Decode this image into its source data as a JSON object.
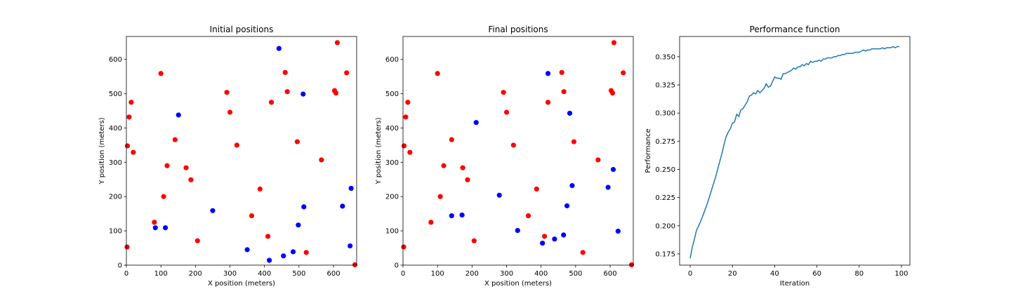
{
  "chart_data": [
    {
      "type": "scatter",
      "title": "Initial positions",
      "xlabel": "X position (meters)",
      "ylabel": "Y position (meters)",
      "xlim": [
        0,
        667
      ],
      "ylim": [
        0,
        667
      ],
      "xticks": [
        0,
        100,
        200,
        300,
        400,
        500,
        600
      ],
      "yticks": [
        0,
        100,
        200,
        300,
        400,
        500,
        600
      ],
      "grid": false,
      "series": [
        {
          "color": "#ff0000",
          "points": [
            [
              2,
              53
            ],
            [
              3,
              348
            ],
            [
              8,
              432
            ],
            [
              14,
              475
            ],
            [
              20,
              329
            ],
            [
              81,
              125
            ],
            [
              100,
              559
            ],
            [
              108,
              200
            ],
            [
              118,
              290
            ],
            [
              141,
              366
            ],
            [
              173,
              284
            ],
            [
              187,
              249
            ],
            [
              206,
              71
            ],
            [
              291,
              504
            ],
            [
              300,
              446
            ],
            [
              320,
              350
            ],
            [
              363,
              144
            ],
            [
              387,
              222
            ],
            [
              410,
              84
            ],
            [
              420,
              475
            ],
            [
              460,
              562
            ],
            [
              466,
              506
            ],
            [
              495,
              360
            ],
            [
              521,
              37
            ],
            [
              565,
              307
            ],
            [
              603,
              509
            ],
            [
              607,
              502
            ],
            [
              611,
              649
            ],
            [
              638,
              561
            ],
            [
              662,
              1
            ]
          ]
        },
        {
          "color": "#0000ff",
          "points": [
            [
              84,
              109
            ],
            [
              113,
              109
            ],
            [
              151,
              438
            ],
            [
              250,
              159
            ],
            [
              350,
              45
            ],
            [
              414,
              14
            ],
            [
              442,
              632
            ],
            [
              455,
              27
            ],
            [
              483,
              39
            ],
            [
              498,
              117
            ],
            [
              512,
              499
            ],
            [
              514,
              170
            ],
            [
              626,
              172
            ],
            [
              648,
              56
            ],
            [
              651,
              224
            ]
          ]
        }
      ]
    },
    {
      "type": "scatter",
      "title": "Final positions",
      "xlabel": "X position (meters)",
      "ylabel": "Y position (meters)",
      "xlim": [
        0,
        667
      ],
      "ylim": [
        0,
        667
      ],
      "xticks": [
        0,
        100,
        200,
        300,
        400,
        500,
        600
      ],
      "yticks": [
        0,
        100,
        200,
        300,
        400,
        500,
        600
      ],
      "grid": false,
      "series": [
        {
          "color": "#ff0000",
          "points": [
            [
              2,
              53
            ],
            [
              3,
              348
            ],
            [
              8,
              432
            ],
            [
              14,
              475
            ],
            [
              20,
              329
            ],
            [
              81,
              125
            ],
            [
              100,
              559
            ],
            [
              108,
              200
            ],
            [
              118,
              290
            ],
            [
              141,
              366
            ],
            [
              173,
              284
            ],
            [
              187,
              249
            ],
            [
              206,
              71
            ],
            [
              291,
              504
            ],
            [
              300,
              446
            ],
            [
              320,
              350
            ],
            [
              363,
              144
            ],
            [
              387,
              222
            ],
            [
              410,
              84
            ],
            [
              420,
              475
            ],
            [
              460,
              562
            ],
            [
              466,
              506
            ],
            [
              495,
              360
            ],
            [
              521,
              37
            ],
            [
              565,
              307
            ],
            [
              603,
              509
            ],
            [
              607,
              502
            ],
            [
              611,
              649
            ],
            [
              638,
              561
            ],
            [
              662,
              1
            ]
          ]
        },
        {
          "color": "#0000ff",
          "points": [
            [
              141,
              144
            ],
            [
              171,
              146
            ],
            [
              212,
              416
            ],
            [
              279,
              204
            ],
            [
              332,
              101
            ],
            [
              404,
              64
            ],
            [
              420,
              559
            ],
            [
              439,
              76
            ],
            [
              465,
              88
            ],
            [
              475,
              173
            ],
            [
              483,
              443
            ],
            [
              490,
              232
            ],
            [
              594,
              227
            ],
            [
              609,
              279
            ],
            [
              623,
              99
            ]
          ]
        }
      ]
    },
    {
      "type": "line",
      "title": "Performance function",
      "xlabel": "Iteration",
      "ylabel": "Performance",
      "xlim": [
        -5,
        104
      ],
      "ylim": [
        0.165,
        0.368
      ],
      "xticks": [
        0,
        20,
        40,
        60,
        80,
        100
      ],
      "yticks": [
        "0.175",
        "0.200",
        "0.225",
        "0.250",
        "0.275",
        "0.300",
        "0.325",
        "0.350"
      ],
      "grid": false,
      "series": [
        {
          "color": "#1f77b4",
          "x_start": 0,
          "x_step": 1,
          "values": [
            0.171,
            0.181,
            0.188,
            0.196,
            0.2,
            0.204,
            0.209,
            0.214,
            0.219,
            0.225,
            0.231,
            0.237,
            0.243,
            0.25,
            0.257,
            0.264,
            0.272,
            0.279,
            0.283,
            0.286,
            0.291,
            0.292,
            0.299,
            0.297,
            0.303,
            0.304,
            0.307,
            0.31,
            0.315,
            0.316,
            0.318,
            0.317,
            0.32,
            0.318,
            0.32,
            0.322,
            0.326,
            0.323,
            0.324,
            0.328,
            0.332,
            0.331,
            0.331,
            0.33,
            0.335,
            0.335,
            0.336,
            0.337,
            0.338,
            0.34,
            0.339,
            0.341,
            0.341,
            0.343,
            0.342,
            0.344,
            0.343,
            0.346,
            0.345,
            0.346,
            0.346,
            0.347,
            0.346,
            0.348,
            0.348,
            0.349,
            0.349,
            0.349,
            0.35,
            0.35,
            0.351,
            0.351,
            0.352,
            0.352,
            0.353,
            0.353,
            0.353,
            0.353,
            0.354,
            0.354,
            0.354,
            0.355,
            0.356,
            0.355,
            0.356,
            0.356,
            0.357,
            0.357,
            0.357,
            0.357,
            0.357,
            0.358,
            0.357,
            0.358,
            0.358,
            0.358,
            0.359,
            0.358,
            0.359,
            0.359
          ]
        }
      ]
    }
  ]
}
